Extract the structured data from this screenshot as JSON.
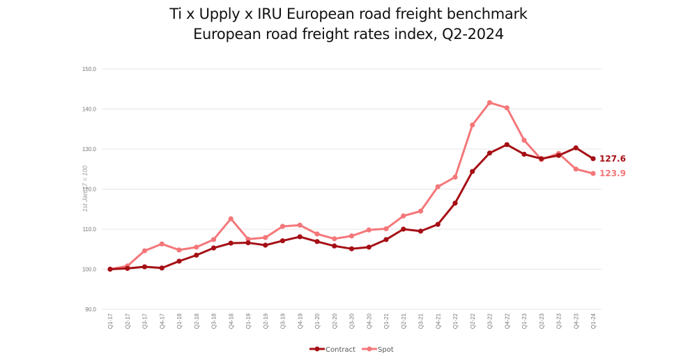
{
  "chart_data": {
    "type": "line",
    "title": "Ti x Upply x IRU European road freight benchmark",
    "subtitle": "European road freight rates index, Q2-2024",
    "xlabel": "",
    "ylabel": "1st Jan 17 = 100",
    "ylim": [
      90,
      150
    ],
    "yticks": [
      "90.0",
      "100.0",
      "110.0",
      "120.0",
      "130.0",
      "140.0",
      "150.0"
    ],
    "ytick_values": [
      90,
      100,
      110,
      120,
      130,
      140,
      150
    ],
    "grid": true,
    "legend_position": "bottom",
    "categories": [
      "Q1-17",
      "Q2-17",
      "Q3-17",
      "Q4-17",
      "Q1-18",
      "Q2-18",
      "Q3-18",
      "Q4-18",
      "Q1-19",
      "Q2-19",
      "Q3-19",
      "Q4-19",
      "Q1-20",
      "Q2-20",
      "Q3-20",
      "Q4-20",
      "Q1-21",
      "Q2-21",
      "Q3-21",
      "Q4-21",
      "Q1-22",
      "Q2-22",
      "Q3-22",
      "Q4-22",
      "Q1-23",
      "Q2-23",
      "Q3-23",
      "Q4-23",
      "Q1-24"
    ],
    "series": [
      {
        "name": "Contract",
        "color": "#a50f15",
        "end_label": "127.6",
        "values": [
          100.0,
          100.2,
          100.6,
          100.3,
          102.0,
          103.5,
          105.3,
          106.5,
          106.6,
          106.0,
          107.1,
          108.1,
          106.9,
          105.8,
          105.1,
          105.5,
          107.4,
          110.0,
          109.5,
          111.2,
          116.5,
          124.4,
          129.0,
          131.1,
          128.7,
          127.6,
          128.4,
          130.3,
          127.6
        ]
      },
      {
        "name": "Spot",
        "color": "#f4777a",
        "end_label": "123.9",
        "values": [
          100.0,
          100.8,
          104.6,
          106.3,
          104.8,
          105.5,
          107.4,
          112.6,
          107.5,
          107.9,
          110.7,
          111.0,
          108.8,
          107.6,
          108.3,
          109.8,
          110.1,
          113.3,
          114.5,
          120.6,
          123.0,
          136.0,
          141.6,
          140.3,
          132.2,
          127.4,
          128.9,
          125.0,
          123.9
        ]
      }
    ]
  }
}
